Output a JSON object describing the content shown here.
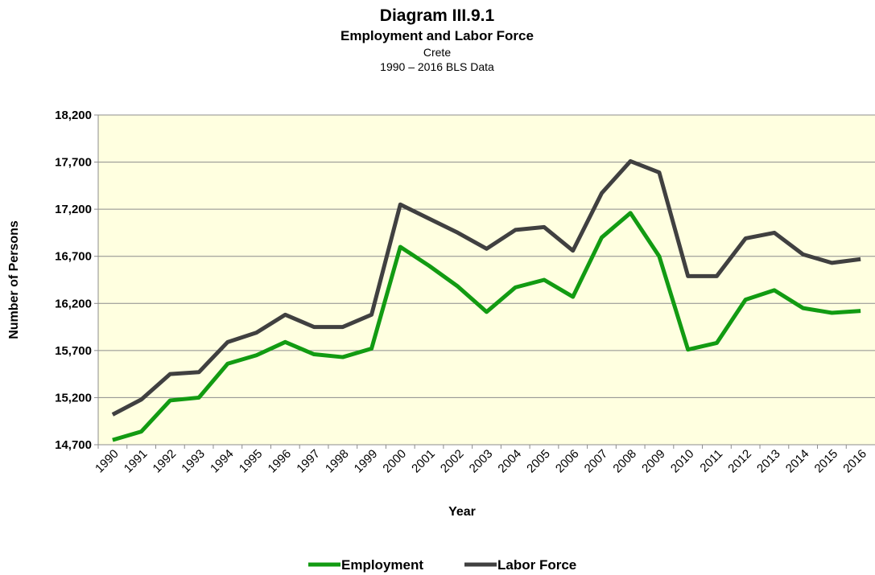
{
  "chart_data": {
    "type": "line",
    "title": "Diagram III.9.1",
    "subtitle": "Employment and Labor Force",
    "region": "Crete",
    "source": "1990 – 2016 BLS Data",
    "x_label": "Year",
    "y_label": "Number of Persons",
    "categories": [
      "1990",
      "1991",
      "1992",
      "1993",
      "1994",
      "1995",
      "1996",
      "1997",
      "1998",
      "1999",
      "2000",
      "2001",
      "2002",
      "2003",
      "2004",
      "2005",
      "2006",
      "2007",
      "2008",
      "2009",
      "2010",
      "2011",
      "2012",
      "2013",
      "2014",
      "2015",
      "2016"
    ],
    "series": [
      {
        "name": "Employment",
        "color": "#129b12",
        "values": [
          14750,
          14840,
          15170,
          15200,
          15560,
          15650,
          15790,
          15660,
          15630,
          15720,
          16800,
          16600,
          16380,
          16110,
          16370,
          16450,
          16270,
          16900,
          17160,
          16700,
          15710,
          15780,
          16240,
          16340,
          16150,
          16100,
          16120
        ]
      },
      {
        "name": "Labor Force",
        "color": "#404040",
        "values": [
          15020,
          15180,
          15450,
          15470,
          15790,
          15890,
          16080,
          15950,
          15950,
          16080,
          17250,
          17100,
          16950,
          16780,
          16980,
          17010,
          16760,
          17370,
          17710,
          17590,
          16490,
          16490,
          16890,
          16950,
          16720,
          16630,
          16670
        ]
      }
    ],
    "ylim": [
      14700,
      18200
    ],
    "yticks": [
      {
        "value": 14700,
        "label": "14,700"
      },
      {
        "value": 15200,
        "label": "15,200"
      },
      {
        "value": 15700,
        "label": "15,700"
      },
      {
        "value": 16200,
        "label": "16,200"
      },
      {
        "value": 16700,
        "label": "16,700"
      },
      {
        "value": 17200,
        "label": "17,200"
      },
      {
        "value": 17700,
        "label": "17,700"
      },
      {
        "value": 18200,
        "label": "18,200"
      }
    ],
    "grid": true,
    "background": "#ffffe0",
    "legend": "bottom"
  }
}
